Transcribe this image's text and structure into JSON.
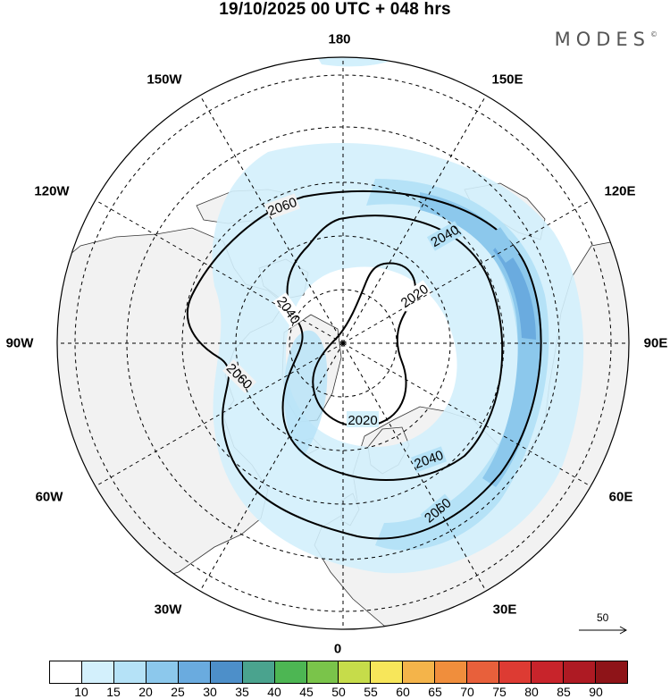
{
  "header": {
    "title": "19/10/2025  00 UTC  + 048 hrs",
    "brand": "MODES",
    "brand_mark": "©"
  },
  "map": {
    "projection": "north-polar-stereographic",
    "longitude_labels": {
      "top": "180",
      "bottom": "0",
      "left": "90W",
      "right": "90E",
      "upper_left_1": "150W",
      "upper_left_2": "120W",
      "upper_right_1": "150E",
      "upper_right_2": "120E",
      "lower_left_1": "60W",
      "lower_left_2": "30W",
      "lower_right_1": "60E",
      "lower_right_2": "30E"
    },
    "contour_labels": [
      "2020",
      "2020",
      "2040",
      "2040",
      "2040",
      "2060",
      "2060",
      "2060"
    ],
    "wind_reference": "50",
    "colors": {
      "land": "#f2f2f2",
      "ocean": "#ffffff",
      "coast": "#333333",
      "grid": "#000000"
    }
  },
  "colorbar": {
    "colors": [
      "#ffffff",
      "#d3f0fc",
      "#b5e2f7",
      "#8cc8ec",
      "#6aabdf",
      "#4d8fc9",
      "#4aa38e",
      "#4db653",
      "#7ac44a",
      "#c6dc4a",
      "#f7e65a",
      "#f4b44a",
      "#f08e3c",
      "#e8603b",
      "#dd3b33",
      "#c8242b",
      "#ae1a23",
      "#8e1418"
    ],
    "labels": [
      "10",
      "15",
      "20",
      "25",
      "30",
      "35",
      "40",
      "45",
      "50",
      "55",
      "60",
      "65",
      "70",
      "75",
      "80",
      "85",
      "90"
    ]
  }
}
